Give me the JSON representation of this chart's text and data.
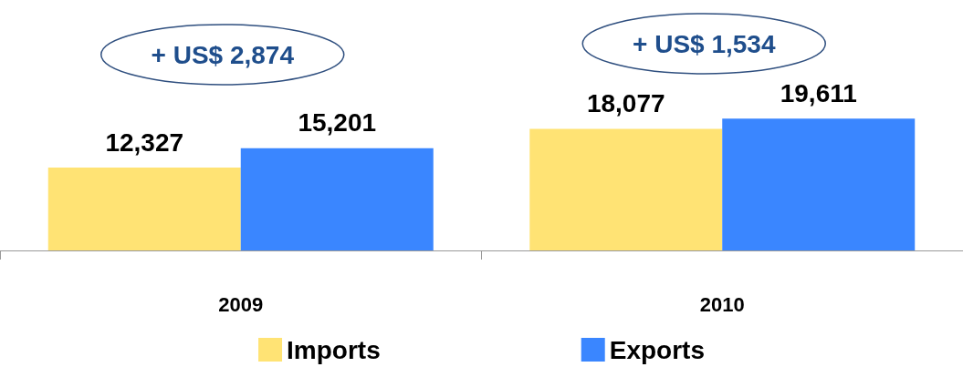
{
  "chart_data": {
    "type": "bar",
    "categories": [
      "2009",
      "2010"
    ],
    "series": [
      {
        "name": "Imports",
        "color": "#ffe374",
        "values": [
          12327,
          18077
        ],
        "value_labels": [
          "12,327",
          "18,077"
        ]
      },
      {
        "name": "Exports",
        "color": "#3a86ff",
        "values": [
          15201,
          19611
        ],
        "value_labels": [
          "15,201",
          "19,611"
        ]
      }
    ],
    "tick_labels": "x",
    "grid": false,
    "legend": "bottom",
    "annotations": [
      "+ US$ 2,874",
      "+ US$ 1,534"
    ]
  }
}
